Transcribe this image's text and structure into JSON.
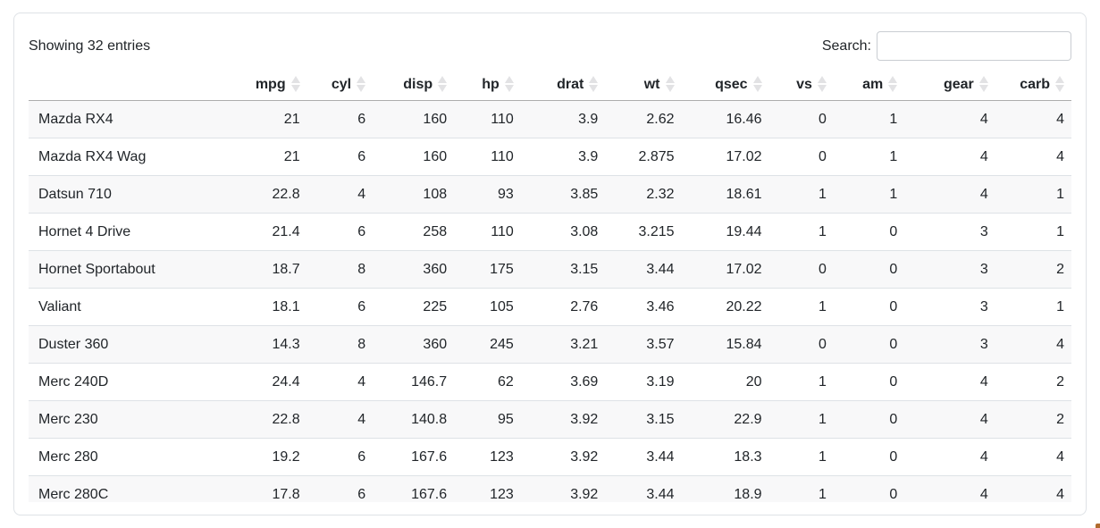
{
  "info_text": "Showing 32 entries",
  "search": {
    "label": "Search:",
    "value": ""
  },
  "table": {
    "row_name_header": "",
    "columns": [
      "mpg",
      "cyl",
      "disp",
      "hp",
      "drat",
      "wt",
      "qsec",
      "vs",
      "am",
      "gear",
      "carb"
    ],
    "sort_icon": "sort-both-icon",
    "rows": [
      {
        "name": "Mazda RX4",
        "values": [
          "21",
          "6",
          "160",
          "110",
          "3.9",
          "2.62",
          "16.46",
          "0",
          "1",
          "4",
          "4"
        ]
      },
      {
        "name": "Mazda RX4 Wag",
        "values": [
          "21",
          "6",
          "160",
          "110",
          "3.9",
          "2.875",
          "17.02",
          "0",
          "1",
          "4",
          "4"
        ]
      },
      {
        "name": "Datsun 710",
        "values": [
          "22.8",
          "4",
          "108",
          "93",
          "3.85",
          "2.32",
          "18.61",
          "1",
          "1",
          "4",
          "1"
        ]
      },
      {
        "name": "Hornet 4 Drive",
        "values": [
          "21.4",
          "6",
          "258",
          "110",
          "3.08",
          "3.215",
          "19.44",
          "1",
          "0",
          "3",
          "1"
        ]
      },
      {
        "name": "Hornet Sportabout",
        "values": [
          "18.7",
          "8",
          "360",
          "175",
          "3.15",
          "3.44",
          "17.02",
          "0",
          "0",
          "3",
          "2"
        ]
      },
      {
        "name": "Valiant",
        "values": [
          "18.1",
          "6",
          "225",
          "105",
          "2.76",
          "3.46",
          "20.22",
          "1",
          "0",
          "3",
          "1"
        ]
      },
      {
        "name": "Duster 360",
        "values": [
          "14.3",
          "8",
          "360",
          "245",
          "3.21",
          "3.57",
          "15.84",
          "0",
          "0",
          "3",
          "4"
        ]
      },
      {
        "name": "Merc 240D",
        "values": [
          "24.4",
          "4",
          "146.7",
          "62",
          "3.69",
          "3.19",
          "20",
          "1",
          "0",
          "4",
          "2"
        ]
      },
      {
        "name": "Merc 230",
        "values": [
          "22.8",
          "4",
          "140.8",
          "95",
          "3.92",
          "3.15",
          "22.9",
          "1",
          "0",
          "4",
          "2"
        ]
      },
      {
        "name": "Merc 280",
        "values": [
          "19.2",
          "6",
          "167.6",
          "123",
          "3.92",
          "3.44",
          "18.3",
          "1",
          "0",
          "4",
          "4"
        ]
      },
      {
        "name": "Merc 280C",
        "values": [
          "17.8",
          "6",
          "167.6",
          "123",
          "3.92",
          "3.44",
          "18.9",
          "1",
          "0",
          "4",
          "4"
        ]
      }
    ]
  },
  "colors": {
    "stripe": "#f8f8f9",
    "row_border": "#dee2e6",
    "card_border": "#dee2e6",
    "header_border": "rgba(0,0,0,0.32)",
    "sort_icon_inactive": "#e2e2e4",
    "corner_artifact": "#b06a2d"
  }
}
